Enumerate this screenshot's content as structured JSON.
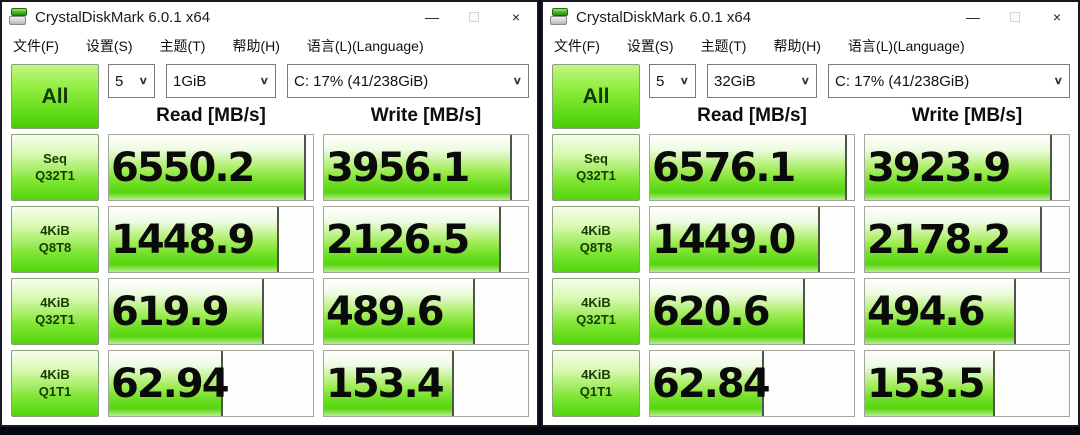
{
  "app": {
    "title": "CrystalDiskMark 6.0.1 x64",
    "window_buttons": {
      "minimize": "—",
      "close": "×"
    }
  },
  "colors": {
    "accent_green": "#54d60e",
    "bar_tick": "#4e554a",
    "window_border": "#181824",
    "value_text": "#0a0a0a"
  },
  "windows": [
    {
      "menu": [
        "文件(F)",
        "设置(S)",
        "主题(T)",
        "帮助(H)",
        "语言(L)(Language)"
      ],
      "test_count": "5",
      "test_size": "1GiB",
      "target_drive": "C: 17% (41/238GiB)",
      "all_button": "All",
      "col_read": "Read [MB/s]",
      "col_write": "Write [MB/s]",
      "rows": [
        {
          "type": "Seq",
          "queue": "Q32T1",
          "read": "6550.2",
          "write": "3956.1"
        },
        {
          "type": "4KiB",
          "queue": "Q8T8",
          "read": "1448.9",
          "write": "2126.5"
        },
        {
          "type": "4KiB",
          "queue": "Q32T1",
          "read": "619.9",
          "write": "489.6"
        },
        {
          "type": "4KiB",
          "queue": "Q1T1",
          "read": "62.94",
          "write": "153.4"
        }
      ]
    },
    {
      "menu": [
        "文件(F)",
        "设置(S)",
        "主题(T)",
        "帮助(H)",
        "语言(L)(Language)"
      ],
      "test_count": "5",
      "test_size": "32GiB",
      "target_drive": "C: 17% (41/238GiB)",
      "all_button": "All",
      "col_read": "Read [MB/s]",
      "col_write": "Write [MB/s]",
      "rows": [
        {
          "type": "Seq",
          "queue": "Q32T1",
          "read": "6576.1",
          "write": "3923.9"
        },
        {
          "type": "4KiB",
          "queue": "Q8T8",
          "read": "1449.0",
          "write": "2178.2"
        },
        {
          "type": "4KiB",
          "queue": "Q32T1",
          "read": "620.6",
          "write": "494.6"
        },
        {
          "type": "4KiB",
          "queue": "Q1T1",
          "read": "62.84",
          "write": "153.5"
        }
      ]
    }
  ]
}
